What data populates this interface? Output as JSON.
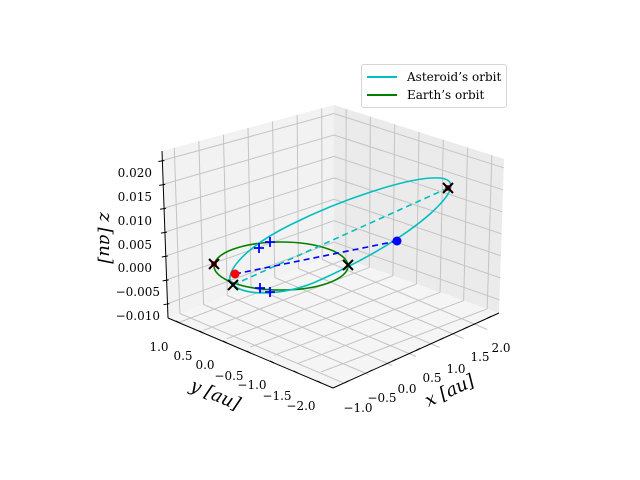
{
  "chart_data": {
    "type": "line3d",
    "title": "",
    "xlabel": "x [au]",
    "ylabel": "y [au]",
    "zlabel": "z [au]",
    "xticks": [
      "−1.0",
      "−0.5",
      "0.0",
      "0.5",
      "1.0",
      "1.5",
      "2.0"
    ],
    "yticks": [
      "1.0",
      "0.5",
      "0.0",
      "−0.5",
      "−1.0",
      "−1.5",
      "−2.0"
    ],
    "zticks": [
      "0.020",
      "0.015",
      "0.010",
      "0.005",
      "0.000",
      "−0.005",
      "−0.010"
    ],
    "xlim": [
      -1.2,
      2.2
    ],
    "ylim": [
      -2.2,
      1.2
    ],
    "zlim": [
      -0.011,
      0.023
    ],
    "grid": true,
    "legend_position": "upper right",
    "series": [
      {
        "name": "Asteroid's orbit",
        "color": "#00bfbf",
        "style": "solid",
        "description": "Inclined ellipse, perihelion near (-0.8,-0.3,-0.004), aphelion near (2.0,1.0,0.019)"
      },
      {
        "name": "Earth's orbit",
        "color": "#008000",
        "style": "solid",
        "description": "Circle radius 1 au in z=0 plane"
      }
    ],
    "annotations": [
      {
        "type": "dashed-line",
        "color": "#0000ff",
        "from": "red dot (Earth position)",
        "to": "blue dot (asteroid position)"
      },
      {
        "type": "dashed-line",
        "color": "#00bfbf",
        "from": "perihelion marker",
        "to": "aphelion marker (line of apsides)"
      },
      {
        "type": "marker",
        "symbol": "circle",
        "color": "#ff0000",
        "label": "Earth position"
      },
      {
        "type": "marker",
        "symbol": "circle",
        "color": "#0000ff",
        "label": "Asteroid position"
      },
      {
        "type": "marker",
        "symbol": "x",
        "color": "#000000",
        "count": 4,
        "label": "apsides / crossing points"
      },
      {
        "type": "marker",
        "symbol": "+",
        "color": "#0000ff",
        "count": 4,
        "label": "node points"
      }
    ]
  },
  "legend": {
    "items": [
      {
        "label": "Asteroid’s orbit",
        "color": "#00bfbf"
      },
      {
        "label": "Earth’s orbit",
        "color": "#008000"
      }
    ]
  },
  "axes": {
    "xlabel": "x [au]",
    "ylabel": "y [au]",
    "zlabel": "z [au]"
  }
}
